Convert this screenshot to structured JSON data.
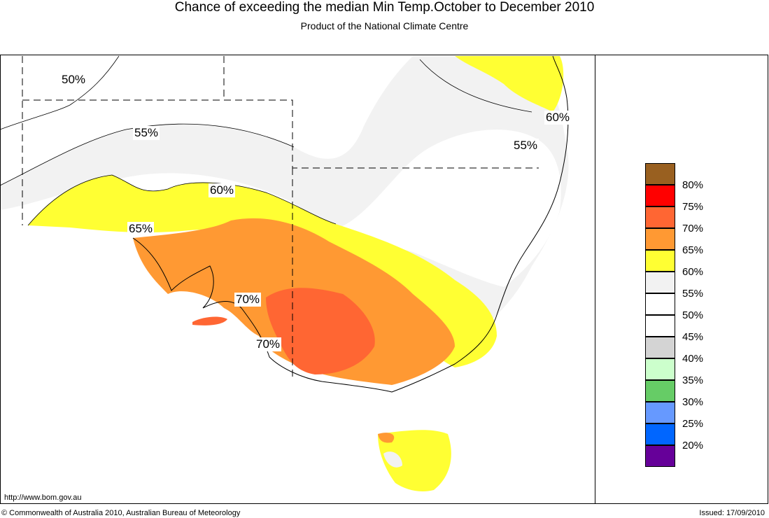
{
  "header": {
    "title": "Chance of exceeding the median Min Temp.October to December 2010",
    "subtitle": "Product of the National Climate Centre"
  },
  "map": {
    "region": "South-eastern Australia",
    "contour_labels": [
      "50%",
      "55%",
      "60%",
      "65%",
      "70%",
      "70%",
      "60%",
      "55%"
    ]
  },
  "legend": {
    "items": [
      {
        "label": "80%",
        "color": "#996020"
      },
      {
        "label": "75%",
        "color": "#ff0000"
      },
      {
        "label": "70%",
        "color": "#ff6633"
      },
      {
        "label": "65%",
        "color": "#ff9933"
      },
      {
        "label": "60%",
        "color": "#ffff33"
      },
      {
        "label": "55%",
        "color": "#f2f2f2"
      },
      {
        "label": "50%",
        "color": "#ffffff"
      },
      {
        "label": "45%",
        "color": "#ffffff"
      },
      {
        "label": "40%",
        "color": "#d4d4d4"
      },
      {
        "label": "35%",
        "color": "#ccffcc"
      },
      {
        "label": "30%",
        "color": "#66cc66"
      },
      {
        "label": "25%",
        "color": "#6699ff"
      },
      {
        "label": "20%",
        "color": "#0066ff"
      },
      {
        "label": "",
        "color": "#660099"
      }
    ]
  },
  "footer": {
    "url": "http://www.bom.gov.au",
    "copyright": "© Commonwealth of Australia 2010, Australian Bureau of Meteorology",
    "issued": "Issued: 17/09/2010"
  }
}
